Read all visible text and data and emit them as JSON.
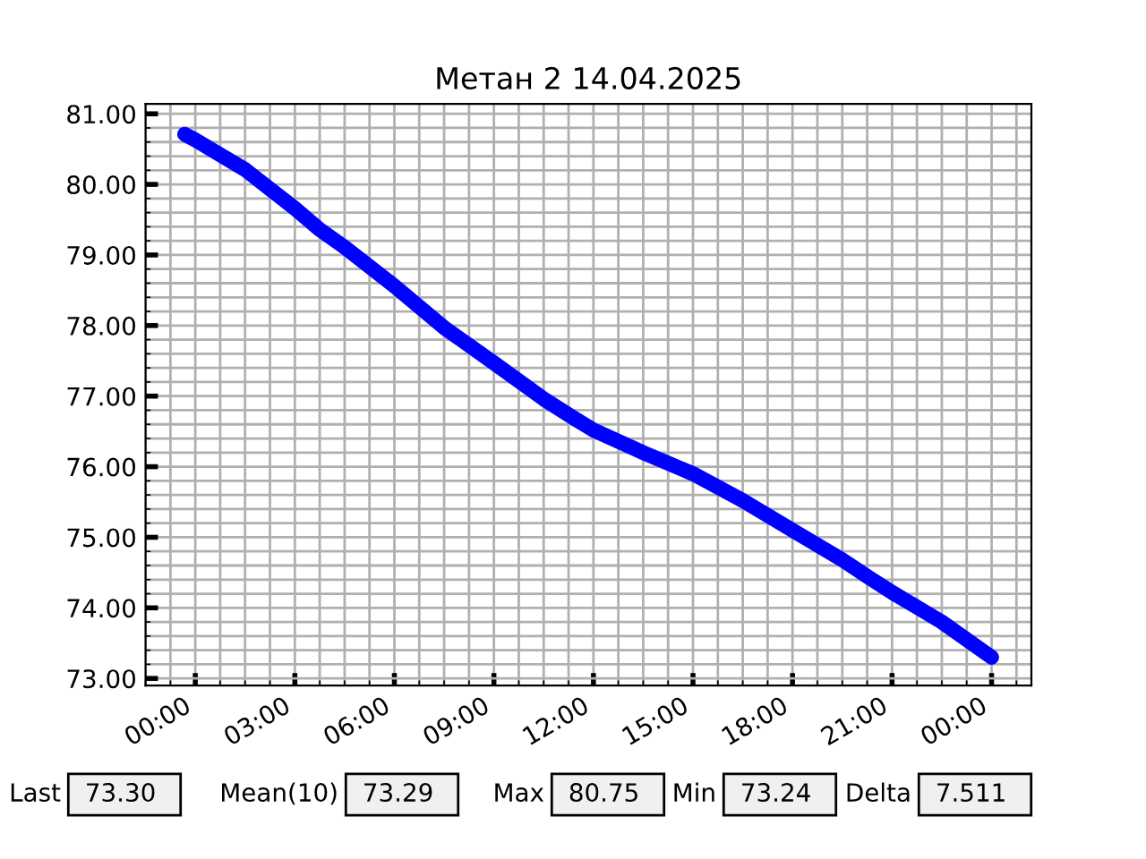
{
  "chart_data": {
    "type": "line",
    "title": "Метан 2 14.04.2025",
    "x": [
      -0.32,
      0,
      1.5,
      3,
      3.75,
      4.5,
      6,
      7.5,
      9,
      10.5,
      11.37,
      12,
      13.5,
      15,
      16.5,
      18,
      19.5,
      20.3,
      21,
      22.5,
      24
    ],
    "series": [
      {
        "color": "#0000ff",
        "values": [
          80.71,
          80.63,
          80.21,
          79.66,
          79.36,
          79.11,
          78.56,
          77.97,
          77.47,
          76.96,
          76.7,
          76.52,
          76.2,
          75.9,
          75.52,
          75.1,
          74.68,
          74.43,
          74.22,
          73.8,
          73.3
        ]
      }
    ],
    "xlim": [
      -1.5,
      25.2
    ],
    "ylim": [
      72.9,
      81.14
    ],
    "xticks": [
      {
        "value": 0,
        "label": "00:00"
      },
      {
        "value": 3,
        "label": "03:00"
      },
      {
        "value": 6,
        "label": "06:00"
      },
      {
        "value": 9,
        "label": "09:00"
      },
      {
        "value": 12,
        "label": "12:00"
      },
      {
        "value": 15,
        "label": "15:00"
      },
      {
        "value": 18,
        "label": "18:00"
      },
      {
        "value": 21,
        "label": "21:00"
      },
      {
        "value": 24,
        "label": "00:00"
      }
    ],
    "yticks": [
      {
        "value": 73,
        "label": "73.00"
      },
      {
        "value": 74,
        "label": "74.00"
      },
      {
        "value": 75,
        "label": "75.00"
      },
      {
        "value": 76,
        "label": "76.00"
      },
      {
        "value": 77,
        "label": "77.00"
      },
      {
        "value": 78,
        "label": "78.00"
      },
      {
        "value": 79,
        "label": "79.00"
      },
      {
        "value": 80,
        "label": "80.00"
      },
      {
        "value": 81,
        "label": "81.00"
      }
    ],
    "grid": true,
    "legend": false,
    "marker": "none",
    "line_style": "solid",
    "annotations": [
      "Last",
      "73.30",
      "Mean(10)",
      "73.29",
      "Max",
      "80.75",
      "Min",
      "73.24",
      "Delta",
      "7.511"
    ]
  }
}
